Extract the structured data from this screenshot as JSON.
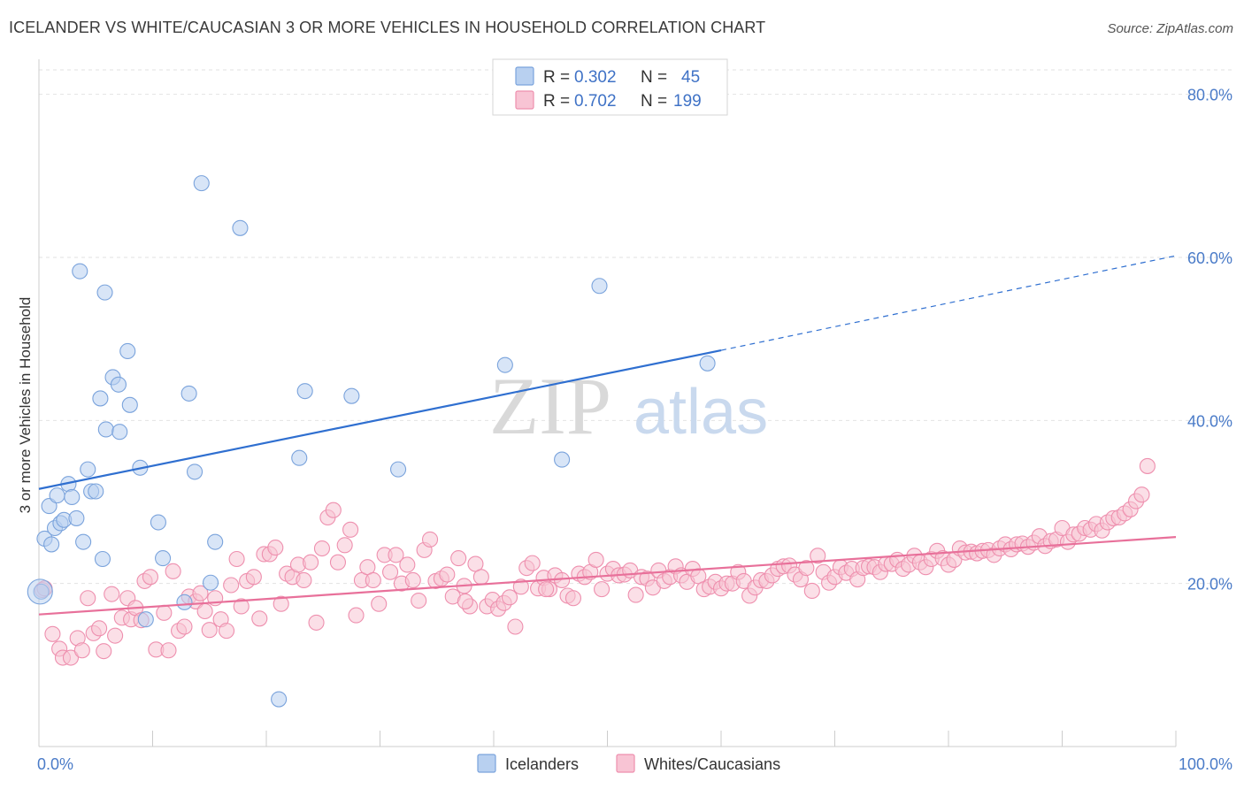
{
  "header": {
    "title": "ICELANDER VS WHITE/CAUCASIAN 3 OR MORE VEHICLES IN HOUSEHOLD CORRELATION CHART",
    "source": "Source: ZipAtlas.com"
  },
  "watermark": {
    "zip": "ZIP",
    "atlas": "atlas"
  },
  "colors": {
    "blue_fill": "#b8d0f0",
    "blue_stroke": "#7aa3dc",
    "blue_line": "#2f6fd0",
    "pink_fill": "#f8c4d4",
    "pink_stroke": "#ee8fae",
    "pink_line": "#e8709a",
    "tick_text": "#4a7bc8",
    "grid": "#e2e2e2"
  },
  "legend": {
    "rows": [
      {
        "r_label": "R =",
        "r_value": "0.302",
        "n_label": "N =",
        "n_value": "45"
      },
      {
        "r_label": "R =",
        "r_value": "0.702",
        "n_label": "N =",
        "n_value": "199"
      }
    ]
  },
  "chart_data": {
    "type": "scatter",
    "title": "ICELANDER VS WHITE/CAUCASIAN 3 OR MORE VEHICLES IN HOUSEHOLD CORRELATION CHART",
    "xlabel": "",
    "ylabel": "3 or more Vehicles in Household",
    "xlim": [
      0,
      100
    ],
    "ylim": [
      0,
      83
    ],
    "x_tick_labels": [
      "0.0%",
      "100.0%"
    ],
    "y_ticks": [
      20,
      40,
      60,
      80
    ],
    "y_tick_labels": [
      "20.0%",
      "40.0%",
      "60.0%",
      "80.0%"
    ],
    "grid": true,
    "legend_position": "top-center",
    "series": [
      {
        "name": "Icelanders",
        "color": "#b8d0f0",
        "trend": {
          "x": [
            0,
            60
          ],
          "y": [
            31.6,
            48.6
          ],
          "dashed_to": [
            100,
            60.2
          ]
        },
        "points": [
          [
            0.2,
            19.0
          ],
          [
            0.5,
            25.5
          ],
          [
            0.9,
            29.5
          ],
          [
            1.1,
            24.8
          ],
          [
            1.4,
            26.8
          ],
          [
            1.6,
            30.8
          ],
          [
            1.9,
            27.4
          ],
          [
            2.2,
            27.8
          ],
          [
            2.6,
            32.2
          ],
          [
            2.9,
            30.6
          ],
          [
            3.3,
            28.0
          ],
          [
            3.6,
            58.3
          ],
          [
            3.9,
            25.1
          ],
          [
            4.3,
            34.0
          ],
          [
            4.6,
            31.3
          ],
          [
            5.0,
            31.3
          ],
          [
            5.4,
            42.7
          ],
          [
            5.6,
            23.0
          ],
          [
            5.8,
            55.7
          ],
          [
            5.9,
            38.9
          ],
          [
            6.5,
            45.3
          ],
          [
            7.0,
            44.4
          ],
          [
            7.1,
            38.6
          ],
          [
            7.8,
            48.5
          ],
          [
            8.0,
            41.9
          ],
          [
            8.9,
            34.2
          ],
          [
            9.4,
            15.6
          ],
          [
            10.5,
            27.5
          ],
          [
            10.9,
            23.1
          ],
          [
            12.8,
            17.7
          ],
          [
            13.2,
            43.3
          ],
          [
            13.7,
            33.7
          ],
          [
            14.3,
            69.1
          ],
          [
            15.1,
            20.1
          ],
          [
            15.5,
            25.1
          ],
          [
            17.7,
            63.6
          ],
          [
            21.1,
            5.8
          ],
          [
            22.9,
            35.4
          ],
          [
            23.4,
            43.6
          ],
          [
            27.5,
            43.0
          ],
          [
            31.6,
            34.0
          ],
          [
            41.0,
            46.8
          ],
          [
            46.0,
            35.2
          ],
          [
            49.3,
            56.5
          ],
          [
            58.8,
            47.0
          ]
        ]
      },
      {
        "name": "Whites/Caucasians",
        "color": "#f8c4d4",
        "trend": {
          "x": [
            0,
            100
          ],
          "y": [
            16.2,
            25.7
          ]
        },
        "points": [
          [
            0.3,
            19.2
          ],
          [
            0.5,
            19.4
          ],
          [
            1.2,
            13.8
          ],
          [
            1.8,
            12.0
          ],
          [
            2.1,
            10.9
          ],
          [
            2.8,
            10.9
          ],
          [
            3.4,
            13.3
          ],
          [
            3.8,
            11.8
          ],
          [
            4.3,
            18.2
          ],
          [
            4.8,
            13.9
          ],
          [
            5.3,
            14.5
          ],
          [
            5.7,
            11.7
          ],
          [
            6.4,
            18.7
          ],
          [
            6.7,
            13.6
          ],
          [
            7.3,
            15.8
          ],
          [
            7.8,
            18.2
          ],
          [
            8.1,
            15.6
          ],
          [
            8.5,
            17.0
          ],
          [
            9.0,
            15.5
          ],
          [
            9.3,
            20.3
          ],
          [
            9.8,
            20.8
          ],
          [
            10.3,
            11.9
          ],
          [
            11.0,
            16.4
          ],
          [
            11.4,
            11.8
          ],
          [
            11.8,
            21.5
          ],
          [
            12.3,
            14.2
          ],
          [
            12.8,
            14.7
          ],
          [
            13.2,
            18.4
          ],
          [
            13.8,
            17.8
          ],
          [
            14.2,
            18.8
          ],
          [
            14.6,
            16.6
          ],
          [
            15.0,
            14.3
          ],
          [
            15.5,
            18.2
          ],
          [
            16.0,
            15.6
          ],
          [
            16.5,
            14.2
          ],
          [
            16.9,
            19.8
          ],
          [
            17.4,
            23.0
          ],
          [
            17.8,
            17.2
          ],
          [
            18.3,
            20.3
          ],
          [
            18.9,
            20.8
          ],
          [
            19.4,
            15.7
          ],
          [
            19.8,
            23.6
          ],
          [
            20.3,
            23.6
          ],
          [
            20.8,
            24.4
          ],
          [
            21.3,
            17.5
          ],
          [
            21.8,
            21.2
          ],
          [
            22.3,
            20.8
          ],
          [
            22.8,
            22.3
          ],
          [
            23.3,
            20.4
          ],
          [
            23.9,
            22.6
          ],
          [
            24.4,
            15.2
          ],
          [
            24.9,
            24.3
          ],
          [
            25.4,
            28.1
          ],
          [
            25.9,
            29.0
          ],
          [
            26.3,
            22.6
          ],
          [
            26.9,
            24.7
          ],
          [
            27.4,
            26.6
          ],
          [
            27.9,
            16.1
          ],
          [
            28.4,
            20.4
          ],
          [
            28.9,
            22.0
          ],
          [
            29.4,
            20.4
          ],
          [
            29.9,
            17.5
          ],
          [
            30.4,
            23.5
          ],
          [
            30.9,
            21.4
          ],
          [
            31.4,
            23.5
          ],
          [
            31.9,
            20.0
          ],
          [
            32.4,
            22.3
          ],
          [
            32.9,
            20.4
          ],
          [
            33.4,
            17.9
          ],
          [
            33.9,
            24.1
          ],
          [
            34.4,
            25.4
          ],
          [
            34.9,
            20.3
          ],
          [
            35.4,
            20.6
          ],
          [
            35.9,
            21.1
          ],
          [
            36.4,
            18.4
          ],
          [
            36.9,
            23.1
          ],
          [
            37.4,
            19.7
          ],
          [
            37.9,
            17.2
          ],
          [
            38.4,
            22.4
          ],
          [
            38.9,
            20.8
          ],
          [
            39.4,
            17.2
          ],
          [
            39.9,
            18.0
          ],
          [
            40.4,
            16.9
          ],
          [
            40.9,
            17.6
          ],
          [
            41.4,
            18.3
          ],
          [
            41.9,
            14.7
          ],
          [
            42.4,
            19.6
          ],
          [
            42.9,
            21.9
          ],
          [
            43.4,
            22.5
          ],
          [
            43.9,
            19.4
          ],
          [
            44.4,
            20.7
          ],
          [
            44.9,
            19.3
          ],
          [
            45.4,
            21.0
          ],
          [
            46.0,
            20.4
          ],
          [
            46.5,
            18.5
          ],
          [
            47.0,
            18.2
          ],
          [
            47.5,
            21.2
          ],
          [
            48.0,
            20.8
          ],
          [
            48.5,
            21.4
          ],
          [
            49.0,
            22.9
          ],
          [
            49.5,
            19.3
          ],
          [
            50.0,
            21.2
          ],
          [
            50.5,
            21.8
          ],
          [
            51.0,
            21.0
          ],
          [
            51.5,
            21.1
          ],
          [
            52.0,
            21.6
          ],
          [
            52.5,
            18.6
          ],
          [
            53.0,
            20.8
          ],
          [
            53.5,
            20.6
          ],
          [
            54.0,
            19.5
          ],
          [
            54.5,
            21.6
          ],
          [
            55.0,
            20.3
          ],
          [
            55.5,
            20.8
          ],
          [
            56.0,
            22.1
          ],
          [
            56.5,
            21.0
          ],
          [
            57.0,
            20.2
          ],
          [
            57.5,
            21.8
          ],
          [
            58.0,
            20.9
          ],
          [
            58.5,
            19.3
          ],
          [
            59.0,
            19.6
          ],
          [
            59.5,
            20.2
          ],
          [
            60.0,
            19.4
          ],
          [
            60.5,
            20.0
          ],
          [
            61.0,
            20.0
          ],
          [
            61.5,
            21.4
          ],
          [
            62.0,
            20.3
          ],
          [
            62.5,
            18.5
          ],
          [
            63.0,
            19.5
          ],
          [
            63.5,
            20.4
          ],
          [
            64.0,
            20.3
          ],
          [
            64.5,
            21.0
          ],
          [
            65.0,
            21.8
          ],
          [
            65.5,
            22.1
          ],
          [
            66.0,
            22.2
          ],
          [
            66.5,
            21.1
          ],
          [
            67.0,
            20.5
          ],
          [
            67.5,
            21.9
          ],
          [
            68.0,
            19.1
          ],
          [
            68.5,
            23.4
          ],
          [
            69.0,
            21.4
          ],
          [
            69.5,
            20.1
          ],
          [
            70.0,
            20.8
          ],
          [
            70.5,
            22.0
          ],
          [
            71.0,
            21.3
          ],
          [
            71.5,
            21.8
          ],
          [
            72.0,
            20.5
          ],
          [
            72.5,
            21.9
          ],
          [
            73.0,
            22.1
          ],
          [
            73.5,
            22.0
          ],
          [
            74.0,
            21.4
          ],
          [
            74.5,
            22.4
          ],
          [
            75.0,
            22.4
          ],
          [
            75.5,
            22.9
          ],
          [
            76.0,
            21.8
          ],
          [
            76.5,
            22.3
          ],
          [
            77.0,
            23.4
          ],
          [
            77.5,
            22.6
          ],
          [
            78.0,
            22.0
          ],
          [
            78.5,
            23.0
          ],
          [
            79.0,
            24.0
          ],
          [
            79.5,
            23.1
          ],
          [
            80.0,
            22.3
          ],
          [
            80.5,
            22.9
          ],
          [
            81.0,
            24.3
          ],
          [
            81.5,
            23.8
          ],
          [
            82.0,
            23.9
          ],
          [
            82.5,
            23.7
          ],
          [
            83.0,
            24.0
          ],
          [
            83.5,
            24.1
          ],
          [
            84.0,
            23.5
          ],
          [
            84.5,
            24.3
          ],
          [
            85.0,
            24.8
          ],
          [
            85.5,
            24.2
          ],
          [
            86.0,
            24.8
          ],
          [
            86.5,
            24.9
          ],
          [
            87.0,
            24.5
          ],
          [
            87.5,
            25.0
          ],
          [
            88.0,
            25.8
          ],
          [
            88.5,
            24.6
          ],
          [
            89.0,
            25.2
          ],
          [
            89.5,
            25.4
          ],
          [
            90.0,
            26.8
          ],
          [
            90.5,
            25.1
          ],
          [
            91.0,
            26.0
          ],
          [
            91.5,
            26.1
          ],
          [
            92.0,
            26.8
          ],
          [
            92.5,
            26.6
          ],
          [
            93.0,
            27.3
          ],
          [
            93.5,
            26.5
          ],
          [
            94.0,
            27.5
          ],
          [
            94.5,
            28.0
          ],
          [
            95.0,
            28.1
          ],
          [
            95.5,
            28.6
          ],
          [
            96.0,
            29.1
          ],
          [
            96.5,
            30.1
          ],
          [
            97.0,
            30.9
          ],
          [
            97.5,
            34.4
          ],
          [
            44.6,
            19.3
          ],
          [
            37.5,
            17.8
          ]
        ]
      }
    ]
  }
}
